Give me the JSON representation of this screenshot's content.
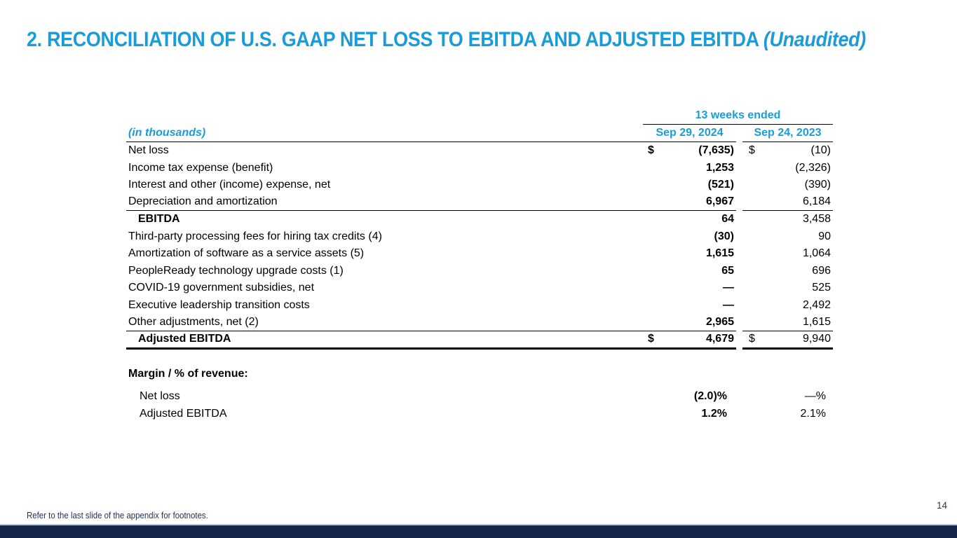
{
  "slide": {
    "title_main": "2. RECONCILIATION OF U.S. GAAP NET LOSS TO EBITDA AND ADJUSTED EBITDA ",
    "title_suffix": "(Unaudited)",
    "footnote": "Refer to the last slide of the appendix for footnotes.",
    "page_number": "14"
  },
  "table": {
    "period_header": "13 weeks ended",
    "unit_label": "(in thousands)",
    "columns": [
      "Sep 29, 2024",
      "Sep 24, 2023"
    ],
    "rows": [
      {
        "label": "Net loss",
        "cur2024": "$",
        "v2024": "(7,635)",
        "cur2023": "$",
        "v2023": "(10)"
      },
      {
        "label": "Income tax expense (benefit)",
        "v2024": "1,253",
        "v2023": "(2,326)"
      },
      {
        "label": "Interest and other (income) expense, net",
        "v2024": "(521)",
        "v2023": "(390)"
      },
      {
        "label": "Depreciation and amortization",
        "v2024": "6,967",
        "v2023": "6,184",
        "rule_below": true
      },
      {
        "label": "EBITDA",
        "indent": true,
        "bold_label": true,
        "v2024": "64",
        "v2023": "3,458"
      },
      {
        "label": "Third-party processing fees for hiring tax credits (4)",
        "v2024": "(30)",
        "v2023": "90"
      },
      {
        "label": "Amortization of software as a service assets (5)",
        "v2024": "1,615",
        "v2023": "1,064"
      },
      {
        "label": "PeopleReady technology upgrade costs (1)",
        "v2024": "65",
        "v2023": "696"
      },
      {
        "label": "COVID-19 government subsidies, net",
        "v2024": "—",
        "v2023": "525"
      },
      {
        "label": "Executive leadership transition costs",
        "v2024": "—",
        "v2023": "2,492"
      },
      {
        "label": "Other adjustments, net (2)",
        "v2024": "2,965",
        "v2023": "1,615",
        "rule_below": true
      },
      {
        "label": "Adjusted EBITDA",
        "indent": true,
        "bold_label": true,
        "cur2024": "$",
        "v2024": "4,679",
        "cur2023": "$",
        "v2023": "9,940",
        "total": true
      }
    ],
    "margin_section": {
      "heading": "Margin / % of revenue:",
      "rows": [
        {
          "label": "Net loss",
          "v2024": "(2.0)%",
          "v2023": "—%"
        },
        {
          "label": "Adjusted EBITDA",
          "v2024": "1.2%",
          "v2023": "2.1%"
        }
      ]
    }
  },
  "colors": {
    "accent_cyan": "#1b9cd8",
    "rule_black": "#000000",
    "footer_bar_navy": "#16254a",
    "footnote_text": "#203457"
  }
}
